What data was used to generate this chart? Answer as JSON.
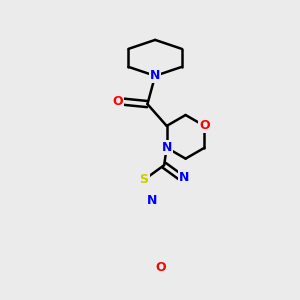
{
  "background_color": "#ebebeb",
  "line_color": "#000000",
  "bond_width": 1.8,
  "atom_colors": {
    "N": "#0000FF",
    "O": "#FF0000",
    "S": "#CCCC00",
    "C": "#000000"
  },
  "fig_size": [
    3.0,
    3.0
  ],
  "dpi": 100
}
